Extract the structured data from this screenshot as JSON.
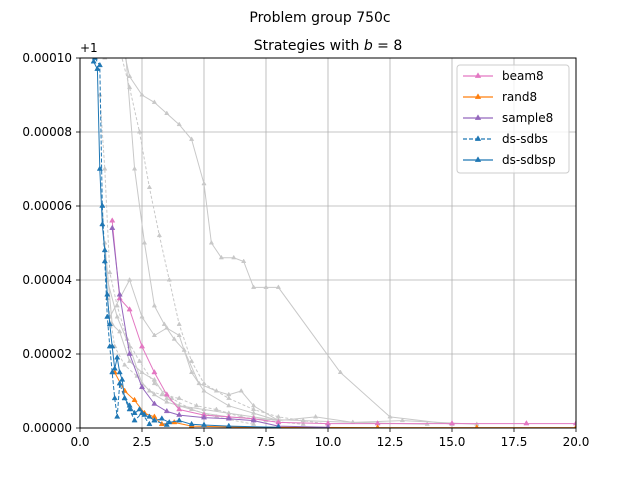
{
  "chart_data": {
    "type": "line",
    "suptitle": "Problem group 750c",
    "title": "Strategies with b = 8",
    "title_prefix": "Strategies with ",
    "title_var": "b",
    "title_suffix": " = 8",
    "y_offset_label": "+1",
    "xlim": [
      0,
      20
    ],
    "ylim": [
      0,
      0.0001
    ],
    "x_ticks": [
      "0.0",
      "2.5",
      "5.0",
      "7.5",
      "10.0",
      "12.5",
      "15.0",
      "17.5",
      "20.0"
    ],
    "y_ticks": [
      "0.00000",
      "0.00002",
      "0.00004",
      "0.00006",
      "0.00008",
      "0.00010"
    ],
    "x_tick_values": [
      0,
      2.5,
      5,
      7.5,
      10,
      12.5,
      15,
      17.5,
      20
    ],
    "y_tick_values": [
      0,
      2e-05,
      4e-05,
      6e-05,
      8e-05,
      0.0001
    ],
    "grid": true,
    "legend_position": "top-right",
    "colors": {
      "beam8": "#e377c2",
      "rand8": "#ff7f0e",
      "sample8": "#9467bd",
      "ds-sdbs": "#1f77b4",
      "ds-sdbsp": "#1f77b4",
      "background": "#c8c8c8"
    },
    "series": [
      {
        "name": "beam8",
        "color": "#e377c2",
        "dashed": false,
        "x": [
          1.3,
          1.6,
          2.0,
          2.5,
          3.0,
          3.5,
          4.0,
          5.0,
          6.0,
          7.0,
          8.0,
          10.0,
          12.0,
          15.0,
          18.0,
          20.0
        ],
        "y": [
          5.6e-05,
          3.5e-05,
          3.2e-05,
          2.2e-05,
          1.5e-05,
          9e-06,
          5e-06,
          3.5e-06,
          3e-06,
          2.5e-06,
          1.5e-06,
          1.2e-06,
          1.2e-06,
          1.2e-06,
          1.2e-06,
          1.2e-06
        ]
      },
      {
        "name": "rand8",
        "color": "#ff7f0e",
        "dashed": false,
        "x": [
          1.4,
          1.8,
          2.2,
          2.6,
          3.0,
          3.3,
          3.8,
          4.5,
          6.0,
          8.0,
          12.0,
          16.0,
          20.0
        ],
        "y": [
          1.5e-05,
          1e-05,
          7.5e-06,
          4e-06,
          3e-06,
          1e-06,
          1.5e-06,
          5e-07,
          3e-07,
          2e-07,
          1e-07,
          1e-07,
          1e-07
        ]
      },
      {
        "name": "sample8",
        "color": "#9467bd",
        "dashed": false,
        "x": [
          1.3,
          1.6,
          2.0,
          2.5,
          3.0,
          3.5,
          4.0,
          5.0,
          6.0,
          7.0,
          8.0,
          10.0
        ],
        "y": [
          5.4e-05,
          3.6e-05,
          2e-05,
          1.1e-05,
          6.5e-06,
          4.5e-06,
          3.5e-06,
          2.8e-06,
          2.5e-06,
          2e-06,
          5e-07,
          2e-07
        ]
      },
      {
        "name": "ds-sdbs",
        "color": "#1f77b4",
        "dashed": true,
        "x": [
          0.6,
          0.8,
          0.9,
          1.0,
          1.1,
          1.2,
          1.3,
          1.4,
          1.5,
          1.6,
          1.8,
          2.0,
          2.2,
          2.5,
          2.8,
          3.0,
          3.5
        ],
        "y": [
          0.0001,
          9.8e-05,
          6e-05,
          4.5e-05,
          3e-05,
          2.2e-05,
          1.5e-05,
          8e-06,
          3e-06,
          1.2e-05,
          8e-06,
          5e-06,
          2e-06,
          4e-06,
          1e-06,
          2e-06,
          8e-07
        ]
      },
      {
        "name": "ds-sdbsp",
        "color": "#1f77b4",
        "dashed": false,
        "x": [
          0.55,
          0.7,
          0.8,
          0.9,
          1.0,
          1.1,
          1.2,
          1.3,
          1.4,
          1.5,
          1.6,
          1.7,
          1.8,
          2.0,
          2.2,
          2.4,
          2.6,
          2.8,
          3.0,
          3.3,
          3.6,
          4.0,
          4.5,
          5.0,
          6.0,
          8.0
        ],
        "y": [
          9.9e-05,
          9.7e-05,
          7e-05,
          5.5e-05,
          4.8e-05,
          3.6e-05,
          2.8e-05,
          2.2e-05,
          1.6e-05,
          1.9e-05,
          1.5e-05,
          1.3e-05,
          8e-06,
          6e-06,
          4e-06,
          5e-06,
          3.5e-06,
          3e-06,
          2e-06,
          2.5e-06,
          1.5e-06,
          2e-06,
          1e-06,
          8e-07,
          5e-07,
          2e-07
        ]
      }
    ],
    "background_series": [
      {
        "x": [
          1.0,
          1.5,
          2.0,
          2.5,
          3.0,
          3.5,
          4.0,
          4.5,
          5.0,
          5.3,
          5.7,
          6.2,
          6.6,
          7.0,
          7.5,
          8.0,
          10.5,
          12.5,
          15.0
        ],
        "y": [
          0.0001,
          0.00011,
          9.5e-05,
          9e-05,
          8.8e-05,
          8.5e-05,
          8.2e-05,
          7.8e-05,
          6.6e-05,
          5e-05,
          4.6e-05,
          4.6e-05,
          4.5e-05,
          3.8e-05,
          3.8e-05,
          3.8e-05,
          1.5e-05,
          3e-06,
          1e-06
        ]
      },
      {
        "x": [
          1.5,
          2.0,
          2.4,
          2.8,
          3.2,
          3.6,
          4.0,
          4.5,
          5.0,
          6.0,
          7.0,
          8.0,
          9.0,
          10.0
        ],
        "y": [
          0.000105,
          9.2e-05,
          8e-05,
          6.5e-05,
          5.2e-05,
          4e-05,
          2.8e-05,
          1.8e-05,
          1.2e-05,
          8e-06,
          5e-06,
          3e-06,
          2e-06,
          1e-06
        ]
      },
      {
        "x": [
          1.2,
          1.6,
          2.0,
          2.5,
          3.0,
          3.5,
          4.0,
          4.5,
          5.0,
          6.0,
          7.0,
          8.0
        ],
        "y": [
          3e-05,
          3.5e-05,
          4e-05,
          3e-05,
          2.5e-05,
          2.7e-05,
          2.5e-05,
          1.5e-05,
          1e-05,
          6e-06,
          4e-06,
          2e-06
        ]
      },
      {
        "x": [
          1.0,
          1.3,
          1.6,
          2.0,
          2.5,
          3.0,
          3.5,
          4.0,
          5.0,
          6.0,
          7.0,
          9.0,
          11.0,
          14.0
        ],
        "y": [
          5e-05,
          2.8e-05,
          2.6e-05,
          1.8e-05,
          1.5e-05,
          1.3e-05,
          8e-06,
          6e-06,
          4e-06,
          3e-06,
          2.5e-06,
          2e-06,
          1.5e-06,
          1e-06
        ]
      },
      {
        "x": [
          0.9,
          1.1,
          1.4,
          1.8,
          2.3,
          2.8,
          3.3,
          4.0,
          4.7,
          5.5,
          6.5,
          7.5,
          9.0
        ],
        "y": [
          6e-05,
          3.5e-05,
          2.2e-05,
          1.7e-05,
          1.4e-05,
          1e-05,
          9e-06,
          8e-06,
          6e-06,
          5e-06,
          3e-06,
          2e-06,
          1e-06
        ]
      },
      {
        "x": [
          1.8,
          2.2,
          2.6,
          3.0,
          3.4,
          3.8,
          4.2,
          4.8,
          5.5,
          6.0,
          6.5,
          7.0,
          8.0
        ],
        "y": [
          0.000105,
          7e-05,
          5e-05,
          3.3e-05,
          2.8e-05,
          2.4e-05,
          2.1e-05,
          1.2e-05,
          1e-05,
          9e-06,
          1e-05,
          6e-06,
          2e-06
        ]
      },
      {
        "x": [
          1.1,
          1.5,
          2.0,
          2.5,
          3.0,
          3.5,
          4.0,
          5.0,
          6.0,
          7.0,
          8.0,
          9.5,
          11.0,
          13.0,
          16.0
        ],
        "y": [
          4e-05,
          3e-05,
          2.2e-05,
          1.2e-05,
          9e-06,
          7e-06,
          6e-06,
          5e-06,
          4e-06,
          3e-06,
          2e-06,
          3e-06,
          1.5e-06,
          2e-06,
          1e-06
        ]
      },
      {
        "x": [
          0.8,
          1.0,
          1.2,
          1.5,
          1.9,
          2.4,
          3.0,
          3.7,
          4.5,
          5.5,
          7.0
        ],
        "y": [
          9e-05,
          7e-05,
          4.2e-05,
          3.3e-05,
          2.4e-05,
          1.8e-05,
          1.2e-05,
          8e-06,
          5e-06,
          3e-06,
          1e-06
        ]
      }
    ]
  }
}
